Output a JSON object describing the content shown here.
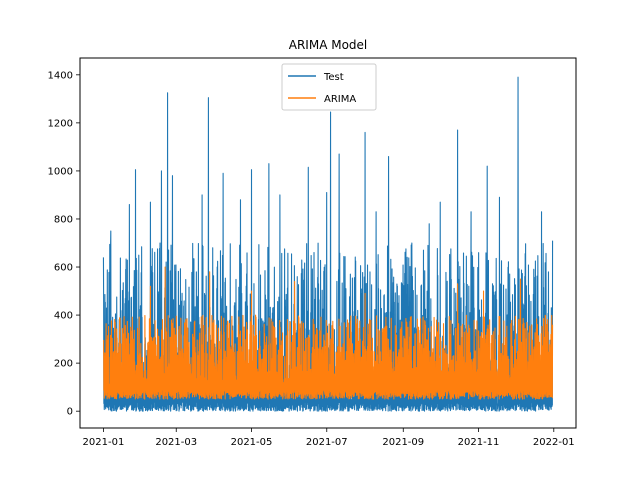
{
  "chart_data": {
    "type": "line",
    "title": "ARIMA Model",
    "xlabel": "",
    "ylabel": "",
    "x_range": [
      "2021-01-01",
      "2021-12-31"
    ],
    "xlim": [
      "2020-12-13",
      "2022-01-19"
    ],
    "ylim": [
      -70,
      1470
    ],
    "x_ticks": [
      "2021-01",
      "2021-03",
      "2021-05",
      "2021-07",
      "2021-09",
      "2021-11",
      "2022-01"
    ],
    "y_ticks": [
      0,
      200,
      400,
      600,
      800,
      1000,
      1200,
      1400
    ],
    "legend": {
      "placement": "upper center",
      "entries": [
        "Test",
        "ARIMA"
      ]
    },
    "grid": false,
    "series": [
      {
        "name": "Test",
        "color": "#1f77b4",
        "typical_range": [
          0,
          700
        ],
        "peaks": [
          {
            "x": "2021-01-01",
            "y": 640
          },
          {
            "x": "2021-01-07",
            "y": 750
          },
          {
            "x": "2021-01-22",
            "y": 860
          },
          {
            "x": "2021-01-27",
            "y": 1005
          },
          {
            "x": "2021-02-08",
            "y": 870
          },
          {
            "x": "2021-02-17",
            "y": 1000
          },
          {
            "x": "2021-02-22",
            "y": 1325
          },
          {
            "x": "2021-02-26",
            "y": 980
          },
          {
            "x": "2021-03-22",
            "y": 900
          },
          {
            "x": "2021-03-27",
            "y": 1305
          },
          {
            "x": "2021-04-08",
            "y": 990
          },
          {
            "x": "2021-04-22",
            "y": 880
          },
          {
            "x": "2021-05-01",
            "y": 1005
          },
          {
            "x": "2021-05-15",
            "y": 1030
          },
          {
            "x": "2021-05-24",
            "y": 900
          },
          {
            "x": "2021-06-16",
            "y": 1015
          },
          {
            "x": "2021-07-01",
            "y": 910
          },
          {
            "x": "2021-07-04",
            "y": 1245
          },
          {
            "x": "2021-07-11",
            "y": 1070
          },
          {
            "x": "2021-08-01",
            "y": 1160
          },
          {
            "x": "2021-08-10",
            "y": 830
          },
          {
            "x": "2021-08-20",
            "y": 1060
          },
          {
            "x": "2021-09-08",
            "y": 700
          },
          {
            "x": "2021-09-22",
            "y": 780
          },
          {
            "x": "2021-10-01",
            "y": 870
          },
          {
            "x": "2021-10-15",
            "y": 1170
          },
          {
            "x": "2021-10-26",
            "y": 830
          },
          {
            "x": "2021-11-08",
            "y": 1020
          },
          {
            "x": "2021-11-18",
            "y": 890
          },
          {
            "x": "2021-12-03",
            "y": 1390
          },
          {
            "x": "2021-12-22",
            "y": 830
          },
          {
            "x": "2021-12-31",
            "y": 710
          }
        ]
      },
      {
        "name": "ARIMA",
        "color": "#ff7f0e",
        "typical_range": [
          50,
          400
        ],
        "peaks": [
          {
            "x": "2021-01-01",
            "y": 290
          },
          {
            "x": "2021-02-08",
            "y": 520
          },
          {
            "x": "2021-02-20",
            "y": 600
          },
          {
            "x": "2021-03-28",
            "y": 580
          },
          {
            "x": "2021-05-01",
            "y": 500
          },
          {
            "x": "2021-06-05",
            "y": 540
          },
          {
            "x": "2021-08-01",
            "y": 490
          },
          {
            "x": "2021-10-15",
            "y": 530
          },
          {
            "x": "2021-11-05",
            "y": 500
          },
          {
            "x": "2021-12-05",
            "y": 550
          },
          {
            "x": "2021-12-31",
            "y": 360
          }
        ]
      }
    ]
  }
}
